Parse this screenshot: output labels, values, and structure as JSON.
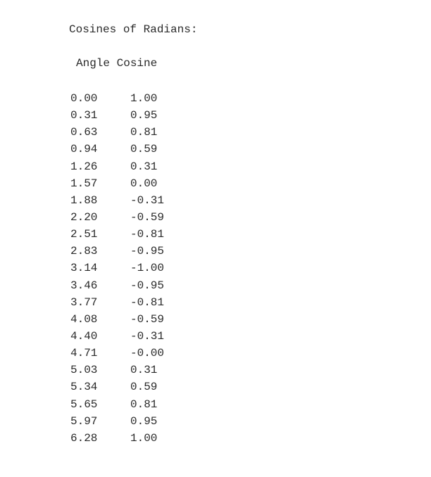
{
  "title": "Cosines of Radians:",
  "table": {
    "headers": {
      "angle": "Angle",
      "cosine": "Cosine"
    },
    "rows": [
      {
        "angle": "0.00",
        "cosine": "1.00"
      },
      {
        "angle": "0.31",
        "cosine": "0.95"
      },
      {
        "angle": "0.63",
        "cosine": "0.81"
      },
      {
        "angle": "0.94",
        "cosine": "0.59"
      },
      {
        "angle": "1.26",
        "cosine": "0.31"
      },
      {
        "angle": "1.57",
        "cosine": "0.00"
      },
      {
        "angle": "1.88",
        "cosine": "-0.31"
      },
      {
        "angle": "2.20",
        "cosine": "-0.59"
      },
      {
        "angle": "2.51",
        "cosine": "-0.81"
      },
      {
        "angle": "2.83",
        "cosine": "-0.95"
      },
      {
        "angle": "3.14",
        "cosine": "-1.00"
      },
      {
        "angle": "3.46",
        "cosine": "-0.95"
      },
      {
        "angle": "3.77",
        "cosine": "-0.81"
      },
      {
        "angle": "4.08",
        "cosine": "-0.59"
      },
      {
        "angle": "4.40",
        "cosine": "-0.31"
      },
      {
        "angle": "4.71",
        "cosine": "-0.00"
      },
      {
        "angle": "5.03",
        "cosine": "0.31"
      },
      {
        "angle": "5.34",
        "cosine": "0.59"
      },
      {
        "angle": "5.65",
        "cosine": "0.81"
      },
      {
        "angle": "5.97",
        "cosine": "0.95"
      },
      {
        "angle": "6.28",
        "cosine": "1.00"
      }
    ]
  }
}
